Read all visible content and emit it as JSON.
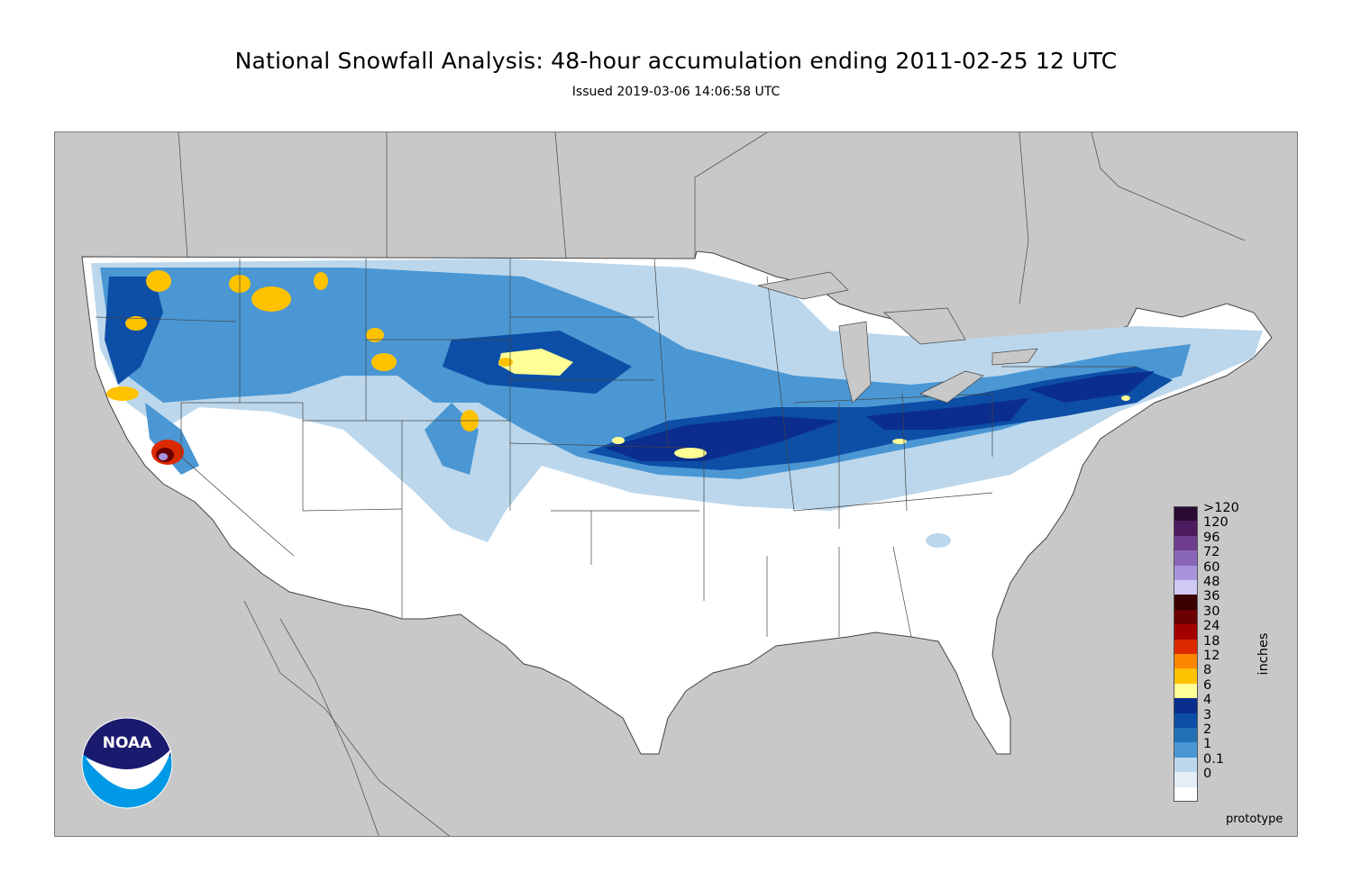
{
  "header": {
    "title": "National Snowfall Analysis: 48-hour accumulation ending 2011-02-25 12 UTC",
    "subtitle": "Issued 2019-03-06 14:06:58 UTC"
  },
  "map": {
    "background_color": "#c8c8c8",
    "land_color": "#ffffff",
    "region": "Contiguous United States"
  },
  "legend": {
    "unit_label": "inches",
    "items": [
      {
        "label": ">120",
        "color": "#2a0a33"
      },
      {
        "label": "120",
        "color": "#4c1a5e"
      },
      {
        "label": "96",
        "color": "#6e3d8f"
      },
      {
        "label": "72",
        "color": "#8a66b8"
      },
      {
        "label": "60",
        "color": "#a894dc"
      },
      {
        "label": "48",
        "color": "#cfc9f5"
      },
      {
        "label": "36",
        "color": "#3a0000"
      },
      {
        "label": "30",
        "color": "#6b0000"
      },
      {
        "label": "24",
        "color": "#a30000"
      },
      {
        "label": "18",
        "color": "#dc2a00"
      },
      {
        "label": "12",
        "color": "#ff8600"
      },
      {
        "label": "8",
        "color": "#ffc200"
      },
      {
        "label": "6",
        "color": "#ffff96"
      },
      {
        "label": "4",
        "color": "#0a2d8e"
      },
      {
        "label": "3",
        "color": "#0d4ea6"
      },
      {
        "label": "2",
        "color": "#2172b5"
      },
      {
        "label": "1",
        "color": "#4a97d4"
      },
      {
        "label": "0.1",
        "color": "#bcd7ec"
      },
      {
        "label": "0",
        "color": "#e4eef7"
      },
      {
        "label": "",
        "color": "#ffffff"
      }
    ]
  },
  "footer": {
    "note": "prototype"
  },
  "logo": {
    "text": "NOAA",
    "colors": {
      "navy": "#1a1a6e",
      "blue": "#0099e6"
    }
  }
}
